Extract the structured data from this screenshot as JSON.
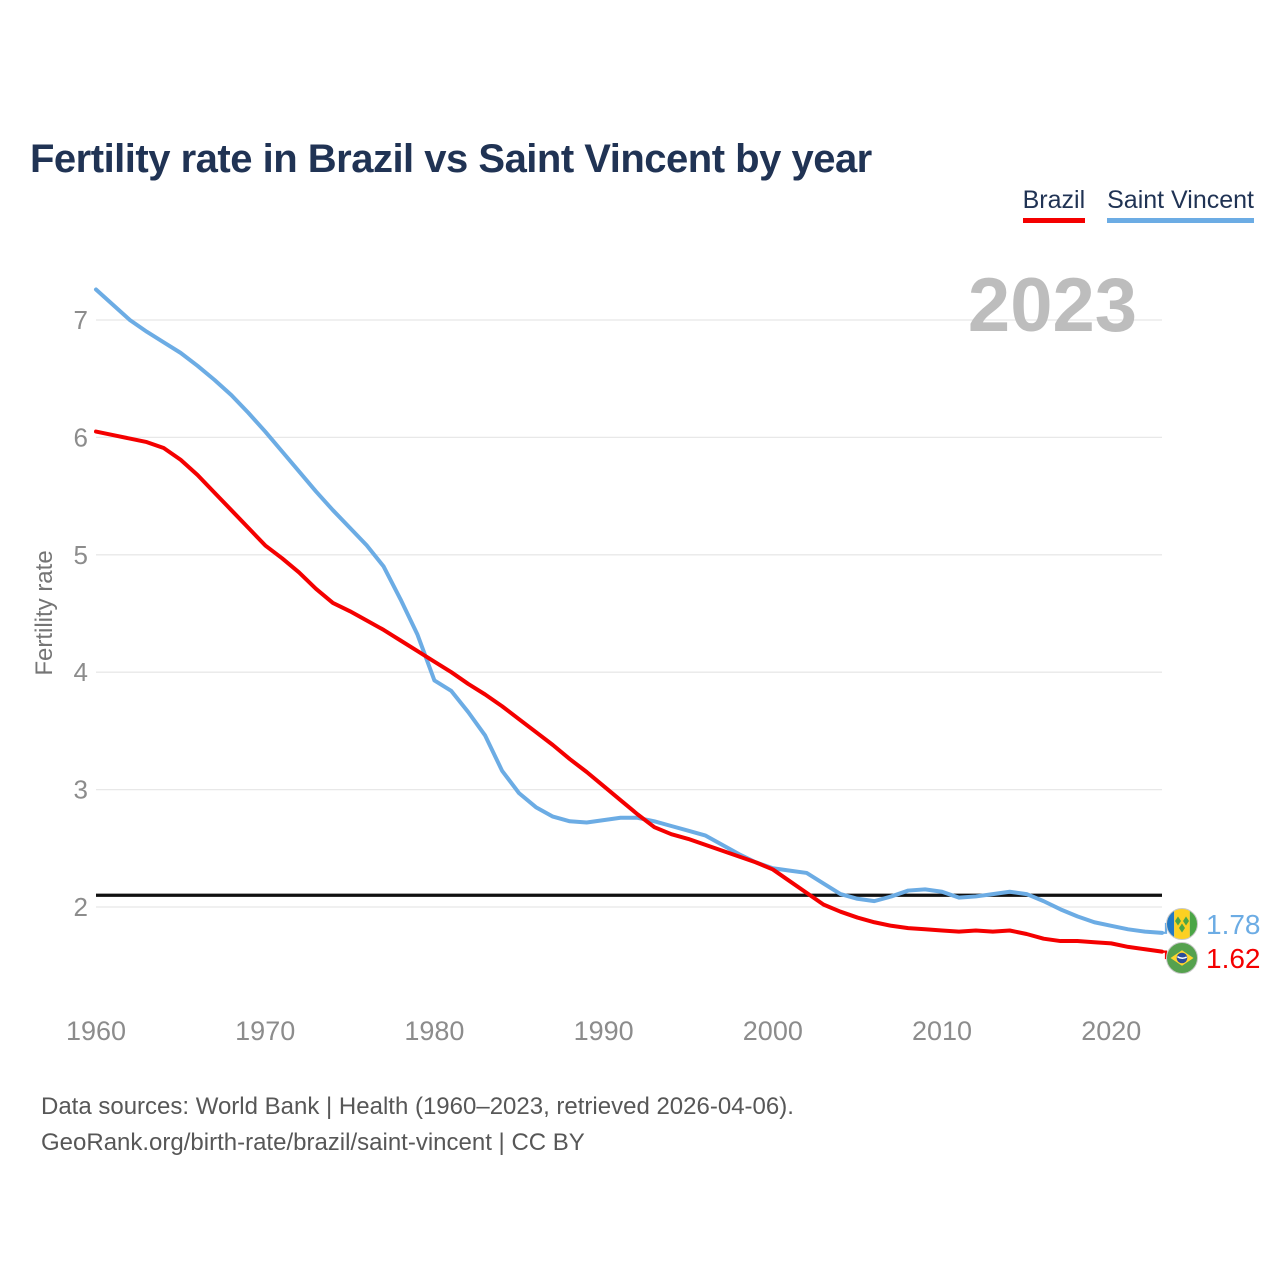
{
  "header": {
    "title": "Fertility rate in Brazil vs Saint Vincent by year"
  },
  "legend": {
    "items": [
      {
        "label": "Brazil",
        "color": "#f40000"
      },
      {
        "label": "Saint Vincent",
        "color": "#6cace4"
      }
    ]
  },
  "chart": {
    "watermark": "2023",
    "y_axis_label": "Fertility rate"
  },
  "footer": {
    "line1": "Data sources: World Bank | Health (1960–2023, retrieved 2026-04-06).",
    "line2": "GeoRank.org/birth-rate/brazil/saint-vincent | CC BY"
  },
  "chart_data": {
    "type": "line",
    "title": "Fertility rate in Brazil vs Saint Vincent by year",
    "xlabel": "",
    "ylabel": "Fertility rate",
    "x_ticks": [
      1960,
      1970,
      1980,
      1990,
      2000,
      2010,
      2020
    ],
    "y_ticks": [
      2,
      3,
      4,
      5,
      6,
      7
    ],
    "xlim": [
      1960,
      2023
    ],
    "ylim": [
      1.5,
      7.5
    ],
    "grid": "horizontal",
    "legend_position": "top-right",
    "reference_line": {
      "value": 2.1,
      "color": "#111111"
    },
    "years": [
      1960,
      1961,
      1962,
      1963,
      1964,
      1965,
      1966,
      1967,
      1968,
      1969,
      1970,
      1971,
      1972,
      1973,
      1974,
      1975,
      1976,
      1977,
      1978,
      1979,
      1980,
      1981,
      1982,
      1983,
      1984,
      1985,
      1986,
      1987,
      1988,
      1989,
      1990,
      1991,
      1992,
      1993,
      1994,
      1995,
      1996,
      1997,
      1998,
      1999,
      2000,
      2001,
      2002,
      2003,
      2004,
      2005,
      2006,
      2007,
      2008,
      2009,
      2010,
      2011,
      2012,
      2013,
      2014,
      2015,
      2016,
      2017,
      2018,
      2019,
      2020,
      2021,
      2022,
      2023
    ],
    "series": [
      {
        "name": "Brazil",
        "id": "brazil",
        "color": "#f40000",
        "end_label": "1.62",
        "end_value": 1.62,
        "values": [
          6.05,
          6.02,
          5.99,
          5.96,
          5.91,
          5.81,
          5.68,
          5.53,
          5.38,
          5.23,
          5.08,
          4.97,
          4.85,
          4.71,
          4.59,
          4.52,
          4.44,
          4.36,
          4.27,
          4.18,
          4.09,
          4.0,
          3.9,
          3.81,
          3.71,
          3.6,
          3.49,
          3.38,
          3.26,
          3.15,
          3.03,
          2.91,
          2.79,
          2.68,
          2.62,
          2.58,
          2.53,
          2.48,
          2.43,
          2.38,
          2.32,
          2.22,
          2.12,
          2.02,
          1.96,
          1.91,
          1.87,
          1.84,
          1.82,
          1.81,
          1.8,
          1.79,
          1.8,
          1.79,
          1.8,
          1.77,
          1.73,
          1.71,
          1.71,
          1.7,
          1.69,
          1.66,
          1.64,
          1.62
        ]
      },
      {
        "name": "Saint Vincent",
        "id": "saint-vincent",
        "color": "#6cace4",
        "end_label": "1.78",
        "end_value": 1.78,
        "values": [
          7.26,
          7.13,
          7.0,
          6.9,
          6.81,
          6.72,
          6.61,
          6.49,
          6.36,
          6.21,
          6.05,
          5.88,
          5.71,
          5.54,
          5.38,
          5.23,
          5.08,
          4.9,
          4.62,
          4.32,
          3.93,
          3.84,
          3.66,
          3.46,
          3.16,
          2.97,
          2.85,
          2.77,
          2.73,
          2.72,
          2.74,
          2.76,
          2.76,
          2.73,
          2.69,
          2.65,
          2.61,
          2.53,
          2.45,
          2.38,
          2.33,
          2.31,
          2.29,
          2.2,
          2.11,
          2.07,
          2.05,
          2.09,
          2.14,
          2.15,
          2.13,
          2.08,
          2.09,
          2.11,
          2.13,
          2.11,
          2.05,
          1.98,
          1.92,
          1.87,
          1.84,
          1.81,
          1.79,
          1.78
        ]
      }
    ]
  }
}
